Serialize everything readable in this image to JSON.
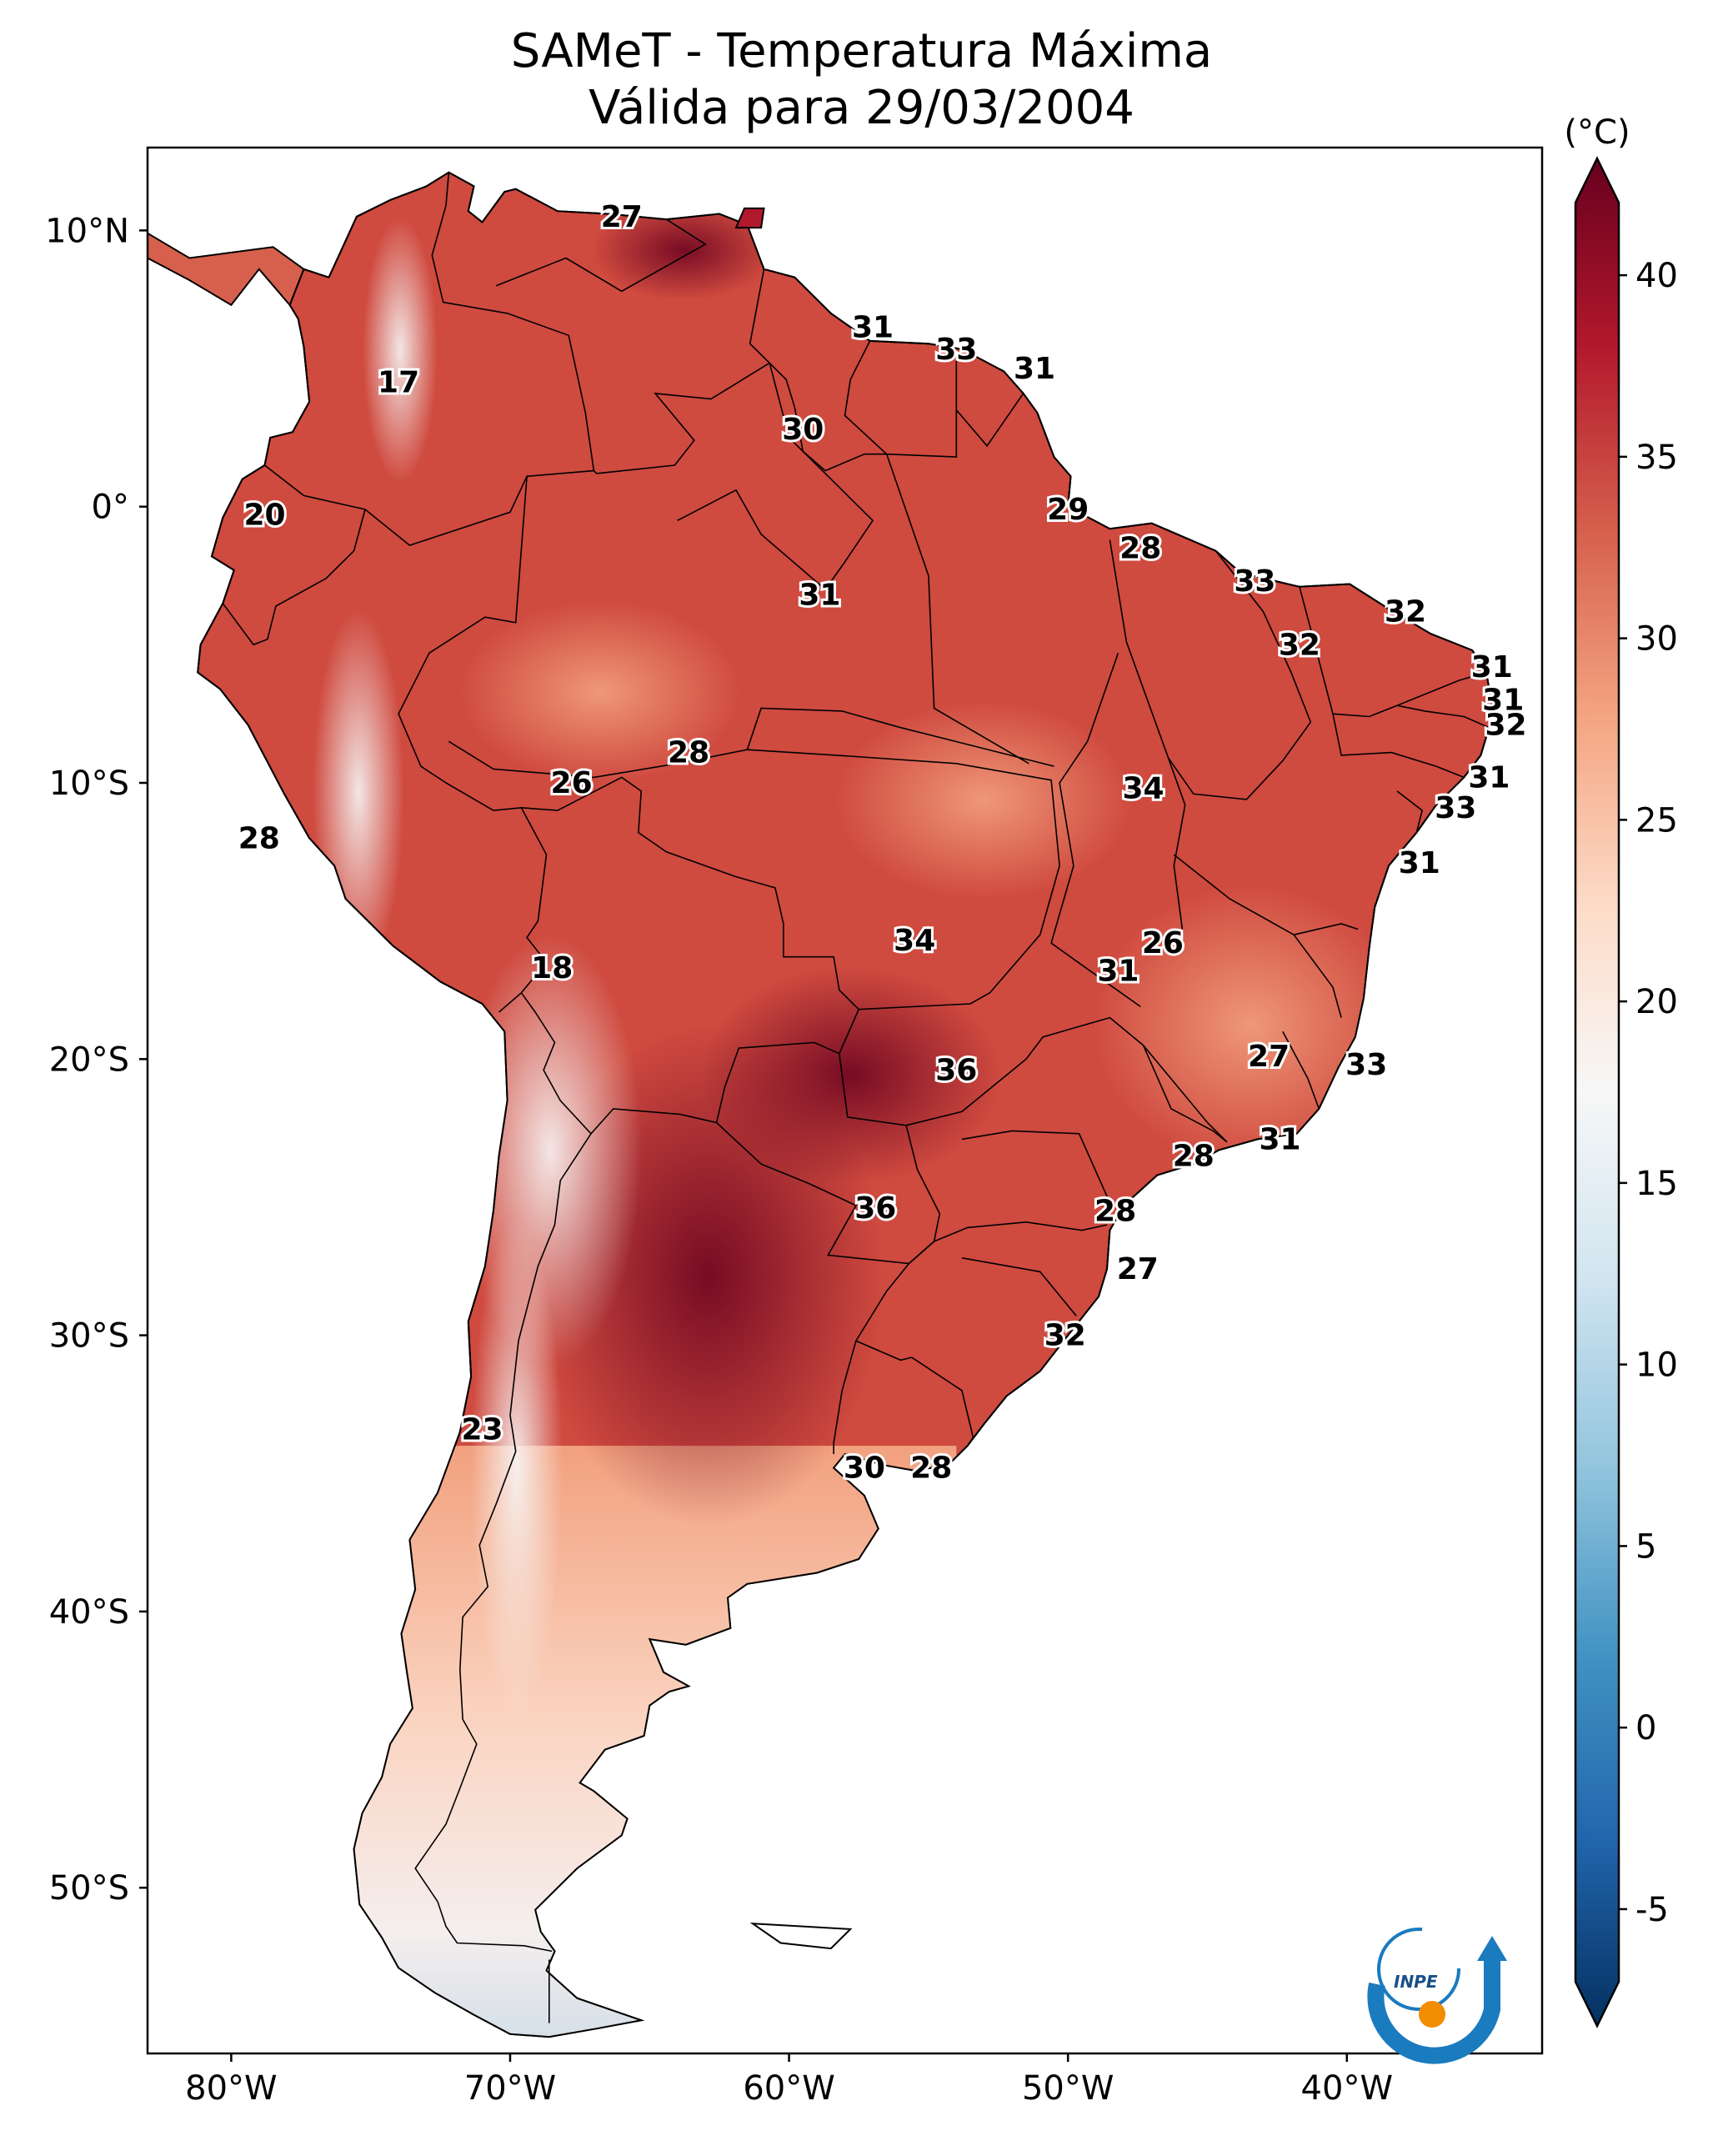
{
  "title": {
    "line1": "SAMeT - Temperatura Máxima",
    "line2": "Válida para 29/03/2004"
  },
  "colorbar": {
    "unit": "(°C)",
    "min": -7,
    "max": 42,
    "ticks": [
      "40",
      "35",
      "30",
      "25",
      "20",
      "15",
      "10",
      "5",
      "0",
      "-5"
    ],
    "tick_values": [
      40,
      35,
      30,
      25,
      20,
      15,
      10,
      5,
      0,
      -5
    ],
    "colors": [
      "#053061",
      "#2166ac",
      "#4393c3",
      "#92c5de",
      "#d1e5f0",
      "#f7f7f7",
      "#fddbc7",
      "#f4a582",
      "#d6604d",
      "#b2182b",
      "#67001f"
    ]
  },
  "axes": {
    "lon_labels": [
      "80°W",
      "70°W",
      "60°W",
      "50°W",
      "40°W"
    ],
    "lon_values": [
      -80,
      -70,
      -60,
      -50,
      -40
    ],
    "lat_labels": [
      "10°N",
      "0°",
      "10°S",
      "20°S",
      "30°S",
      "40°S",
      "50°S"
    ],
    "lat_values": [
      10,
      0,
      -10,
      -20,
      -30,
      -40,
      -50
    ],
    "lon_range": [
      -83,
      -33
    ],
    "lat_range": [
      -56,
      13
    ]
  },
  "logo": {
    "text": "INPE",
    "icon": "inpe-logo-icon",
    "accent": "#1a7bbf",
    "dot": "#f28c00"
  },
  "isotherm_labels": [
    {
      "text": "27",
      "lon": -66,
      "lat": 10.5
    },
    {
      "text": "17",
      "lon": -74,
      "lat": 4.5
    },
    {
      "text": "31",
      "lon": -57,
      "lat": 6.5
    },
    {
      "text": "33",
      "lon": -54,
      "lat": 5.7
    },
    {
      "text": "31",
      "lon": -51.2,
      "lat": 5.0
    },
    {
      "text": "30",
      "lon": -59.5,
      "lat": 2.8
    },
    {
      "text": "20",
      "lon": -78.8,
      "lat": -0.3
    },
    {
      "text": "29",
      "lon": -50,
      "lat": -0.1
    },
    {
      "text": "28",
      "lon": -47.4,
      "lat": -1.5
    },
    {
      "text": "31",
      "lon": -58.9,
      "lat": -3.2
    },
    {
      "text": "33",
      "lon": -43.3,
      "lat": -2.7
    },
    {
      "text": "32",
      "lon": -37.9,
      "lat": -3.8
    },
    {
      "text": "32",
      "lon": -41.7,
      "lat": -5.0
    },
    {
      "text": "31",
      "lon": -34.8,
      "lat": -5.8
    },
    {
      "text": "31",
      "lon": -34.4,
      "lat": -7.0
    },
    {
      "text": "32",
      "lon": -34.3,
      "lat": -7.9
    },
    {
      "text": "28",
      "lon": -63.6,
      "lat": -8.9
    },
    {
      "text": "26",
      "lon": -67.8,
      "lat": -10.0
    },
    {
      "text": "31",
      "lon": -34.9,
      "lat": -9.8
    },
    {
      "text": "34",
      "lon": -47.3,
      "lat": -10.2
    },
    {
      "text": "33",
      "lon": -36.1,
      "lat": -10.9
    },
    {
      "text": "28",
      "lon": -79,
      "lat": -12.0
    },
    {
      "text": "31",
      "lon": -37.4,
      "lat": -12.9
    },
    {
      "text": "34",
      "lon": -55.5,
      "lat": -15.7
    },
    {
      "text": "26",
      "lon": -46.6,
      "lat": -15.8
    },
    {
      "text": "18",
      "lon": -68.5,
      "lat": -16.7
    },
    {
      "text": "31",
      "lon": -48.2,
      "lat": -16.8
    },
    {
      "text": "27",
      "lon": -42.8,
      "lat": -19.9
    },
    {
      "text": "36",
      "lon": -54,
      "lat": -20.4
    },
    {
      "text": "33",
      "lon": -39.3,
      "lat": -20.2
    },
    {
      "text": "31",
      "lon": -42.4,
      "lat": -22.9
    },
    {
      "text": "28",
      "lon": -45.5,
      "lat": -23.5
    },
    {
      "text": "36",
      "lon": -56.9,
      "lat": -25.4
    },
    {
      "text": "28",
      "lon": -48.3,
      "lat": -25.5
    },
    {
      "text": "27",
      "lon": -47.5,
      "lat": -27.6
    },
    {
      "text": "32",
      "lon": -50.1,
      "lat": -30.0
    },
    {
      "text": "23",
      "lon": -71,
      "lat": -33.4
    },
    {
      "text": "30",
      "lon": -57.3,
      "lat": -34.8
    },
    {
      "text": "28",
      "lon": -54.9,
      "lat": -34.8
    }
  ]
}
